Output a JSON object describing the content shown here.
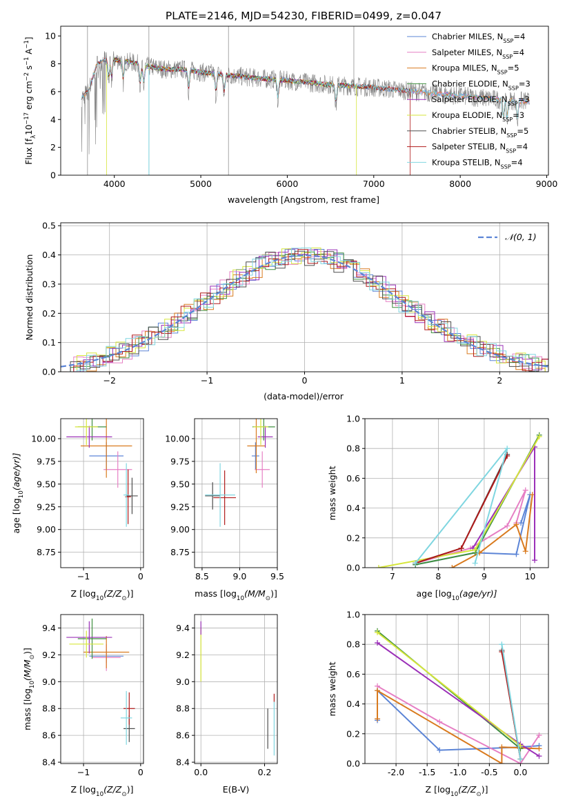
{
  "title": "PLATE=2146, MJD=54230, FIBERID=0499, z=0.047",
  "colors": {
    "Chabrier MILES": "#5b84d6",
    "Salpeter MILES": "#e67fc4",
    "Kroupa MILES": "#d97a1e",
    "Chabrier ELODIE": "#3f8f3f",
    "Salpeter ELODIE": "#9b30b8",
    "Kroupa ELODIE": "#d6e63a",
    "Chabrier STELIB": "#4d4d4d",
    "Salpeter STELIB": "#b01a1a",
    "Kroupa STELIB": "#7fd6e0",
    "data": "#808080",
    "gauss": "#5b84d6"
  },
  "chart_data": [
    {
      "id": "spectrum",
      "type": "line",
      "title": "PLATE=2146, MJD=54230, FIBERID=0499, z=0.047",
      "xlabel": "wavelength [Angstrom, rest frame]",
      "ylabel": "Flux [f",
      "ylabel_sub": "λ",
      "ylabel_rest": "10",
      "ylabel_exp": "−17",
      "ylabel_units": " erg cm",
      "ylabel_units_exp1": "−2",
      "ylabel_units2": " s",
      "ylabel_units_exp2": "−1",
      "ylabel_units3": " A",
      "ylabel_units_exp3": "−1",
      "ylabel_close": "]",
      "xlim": [
        3380,
        9020
      ],
      "ylim": [
        0,
        10.7
      ],
      "xticks": [
        4000,
        5000,
        6000,
        7000,
        8000,
        9000
      ],
      "yticks": [
        0,
        2,
        4,
        6,
        8,
        10
      ],
      "legend_position": "top-right",
      "legend": [
        {
          "name": "Chabrier MILES, N",
          "sub": "SSP",
          "val": "=4"
        },
        {
          "name": "Salpeter MILES, N",
          "sub": "SSP",
          "val": "=4"
        },
        {
          "name": "Kroupa MILES, N",
          "sub": "SSP",
          "val": "=5"
        },
        {
          "name": "Chabrier ELODIE, N",
          "sub": "SSP",
          "val": "=3"
        },
        {
          "name": "Salpeter ELODIE, N",
          "sub": "SSP",
          "val": "=3"
        },
        {
          "name": "Kroupa ELODIE, N",
          "sub": "SSP",
          "val": "=3"
        },
        {
          "name": "Chabrier STELIB, N",
          "sub": "SSP",
          "val": "=5"
        },
        {
          "name": "Salpeter STELIB, N",
          "sub": "SSP",
          "val": "=4"
        },
        {
          "name": "Kroupa STELIB, N",
          "sub": "SSP",
          "val": "=4"
        }
      ],
      "continuum": [
        [
          3620,
          5.6
        ],
        [
          3700,
          6.0
        ],
        [
          3800,
          8.0
        ],
        [
          3900,
          8.3
        ],
        [
          4000,
          8.3
        ],
        [
          4200,
          8.1
        ],
        [
          4400,
          7.8
        ],
        [
          4600,
          7.6
        ],
        [
          4800,
          7.6
        ],
        [
          5000,
          7.4
        ],
        [
          5300,
          7.2
        ],
        [
          5600,
          7.0
        ],
        [
          6000,
          6.8
        ],
        [
          6500,
          6.5
        ],
        [
          7000,
          6.3
        ],
        [
          7500,
          6.0
        ],
        [
          8000,
          5.7
        ],
        [
          8500,
          5.4
        ],
        [
          8800,
          5.3
        ]
      ],
      "absorption_lines": [
        3934,
        3968,
        4102,
        4300,
        4340,
        4861,
        5175,
        5270,
        5892,
        6563,
        8498,
        8542,
        8662
      ]
    },
    {
      "id": "residuals",
      "type": "line",
      "xlabel": "(data-model)/error",
      "ylabel": "Normed distribution",
      "xlim": [
        -2.5,
        2.5
      ],
      "ylim": [
        0,
        0.51
      ],
      "xticks": [
        -2,
        -1,
        0,
        1,
        2
      ],
      "yticks": [
        0.0,
        0.1,
        0.2,
        0.3,
        0.4,
        0.5
      ],
      "gauss_label": "𝒩(0, 1)",
      "grid": true,
      "legend_position": "top-right",
      "bin_width": 0.1
    },
    {
      "id": "age-vs-Z",
      "type": "scatter",
      "xlabel": "Z [log",
      "xlabel_sub": "10",
      "xlabel_rest": "(Z/Z",
      "xlabel_sun_sub": "⊙",
      "xlabel_close": ")]",
      "ylabel": "age  [log",
      "ylabel_sub": "10",
      "ylabel_rest": "(age/yr)]",
      "xlim": [
        -1.4,
        0.05
      ],
      "ylim": [
        8.58,
        10.22
      ],
      "xticks": [
        -1,
        0
      ],
      "yticks": [
        8.75,
        9.0,
        9.25,
        9.5,
        9.75,
        10.0
      ],
      "grid": true,
      "points": [
        {
          "model": "Chabrier MILES",
          "x": -0.6,
          "xerr": 0.3,
          "y": 9.81,
          "yerr": 0.15
        },
        {
          "model": "Salpeter MILES",
          "x": -0.4,
          "xerr": 0.25,
          "y": 9.66,
          "yerr": 0.2
        },
        {
          "model": "Kroupa MILES",
          "x": -0.6,
          "xerr": 0.45,
          "y": 9.92,
          "yerr": 0.35
        },
        {
          "model": "Chabrier ELODIE",
          "x": -0.85,
          "xerr": 0.25,
          "y": 10.13,
          "yerr": 0.15
        },
        {
          "model": "Salpeter ELODIE",
          "x": -0.9,
          "xerr": 0.4,
          "y": 10.02,
          "yerr": 0.12
        },
        {
          "model": "Kroupa ELODIE",
          "x": -0.95,
          "xerr": 0.2,
          "y": 10.13,
          "yerr": 0.2
        },
        {
          "model": "Chabrier STELIB",
          "x": -0.15,
          "xerr": 0.1,
          "y": 9.37,
          "yerr": 0.2
        },
        {
          "model": "Salpeter STELIB",
          "x": -0.22,
          "xerr": 0.05,
          "y": 9.36,
          "yerr": 0.3
        },
        {
          "model": "Kroupa STELIB",
          "x": -0.25,
          "xerr": 0.05,
          "y": 9.38,
          "yerr": 0.35
        }
      ]
    },
    {
      "id": "age-vs-mass",
      "type": "scatter",
      "xlabel": "mass [log",
      "xlabel_sub": "10",
      "xlabel_rest": "(M/M",
      "xlabel_sun_sub": "⊙",
      "xlabel_close": ")]",
      "ylabel": "",
      "xlim": [
        8.4,
        9.5
      ],
      "ylim": [
        8.58,
        10.22
      ],
      "xticks": [
        8.5,
        9.0,
        9.5
      ],
      "yticks": [
        8.75,
        9.0,
        9.25,
        9.5,
        9.75,
        10.0
      ],
      "grid": true,
      "points": [
        {
          "model": "Chabrier MILES",
          "x": 9.21,
          "xerr": 0.05,
          "y": 9.81,
          "yerr": 0.15
        },
        {
          "model": "Salpeter MILES",
          "x": 9.3,
          "xerr": 0.1,
          "y": 9.66,
          "yerr": 0.2
        },
        {
          "model": "Kroupa MILES",
          "x": 9.22,
          "xerr": 0.12,
          "y": 9.92,
          "yerr": 0.3
        },
        {
          "model": "Chabrier ELODIE",
          "x": 9.32,
          "xerr": 0.15,
          "y": 10.13,
          "yerr": 0.15
        },
        {
          "model": "Salpeter ELODIE",
          "x": 9.34,
          "xerr": 0.1,
          "y": 10.02,
          "yerr": 0.12
        },
        {
          "model": "Kroupa ELODIE",
          "x": 9.28,
          "xerr": 0.1,
          "y": 10.13,
          "yerr": 0.2
        },
        {
          "model": "Chabrier STELIB",
          "x": 8.64,
          "xerr": 0.1,
          "y": 9.37,
          "yerr": 0.15
        },
        {
          "model": "Salpeter STELIB",
          "x": 8.8,
          "xerr": 0.15,
          "y": 9.35,
          "yerr": 0.3
        },
        {
          "model": "Kroupa STELIB",
          "x": 8.74,
          "xerr": 0.2,
          "y": 9.38,
          "yerr": 0.35
        }
      ]
    },
    {
      "id": "mass-weight-vs-age",
      "type": "line",
      "xlabel": "age  [log",
      "xlabel_sub": "10",
      "xlabel_rest": "(age/yr)]",
      "ylabel": "mass weight",
      "xlim": [
        6.4,
        10.4
      ],
      "ylim": [
        0,
        1.0
      ],
      "xticks": [
        7,
        8,
        9,
        10
      ],
      "yticks": [
        0.0,
        0.2,
        0.4,
        0.6,
        0.8,
        1.0
      ],
      "grid": true,
      "series": [
        {
          "model": "Chabrier MILES",
          "x": [
            7.5,
            8.8,
            9.7,
            10.0,
            9.8
          ],
          "y": [
            0.02,
            0.1,
            0.09,
            0.49,
            0.3
          ]
        },
        {
          "model": "Salpeter MILES",
          "x": [
            7.5,
            8.7,
            9.5,
            9.9,
            9.7
          ],
          "y": [
            0.03,
            0.13,
            0.28,
            0.52,
            0.3
          ]
        },
        {
          "model": "Kroupa MILES",
          "x": [
            8.3,
            8.9,
            9.7,
            9.9,
            10.05
          ],
          "y": [
            0.0,
            0.1,
            0.29,
            0.11,
            0.49
          ]
        },
        {
          "model": "Chabrier ELODIE",
          "x": [
            7.5,
            8.8,
            10.2
          ],
          "y": [
            0.02,
            0.1,
            0.89
          ]
        },
        {
          "model": "Salpeter ELODIE",
          "x": [
            8.75,
            10.1,
            10.1
          ],
          "y": [
            0.13,
            0.81,
            0.05
          ]
        },
        {
          "model": "Kroupa ELODIE",
          "x": [
            6.7,
            8.8,
            10.2
          ],
          "y": [
            0.0,
            0.12,
            0.88
          ]
        },
        {
          "model": "Chabrier STELIB",
          "x": [
            7.5,
            8.5,
            9.5
          ],
          "y": [
            0.03,
            0.13,
            0.76
          ]
        },
        {
          "model": "Salpeter STELIB",
          "x": [
            7.5,
            8.5,
            9.5
          ],
          "y": [
            0.03,
            0.13,
            0.75
          ]
        },
        {
          "model": "Kroupa STELIB",
          "x": [
            8.8,
            9.5,
            7.5
          ],
          "y": [
            0.03,
            0.8,
            0.03
          ]
        }
      ]
    },
    {
      "id": "mass-vs-Z",
      "type": "scatter",
      "xlabel": "Z [log",
      "xlabel_sub": "10",
      "xlabel_rest": "(Z/Z",
      "xlabel_sun_sub": "⊙",
      "xlabel_close": ")]",
      "ylabel": "mass [log",
      "ylabel_sub": "10",
      "ylabel_rest": "(M/M",
      "ylabel_sun_sub": "⊙",
      "ylabel_close": ")]",
      "xlim": [
        -1.4,
        0.05
      ],
      "ylim": [
        8.39,
        9.5
      ],
      "xticks": [
        -1,
        0
      ],
      "yticks": [
        8.4,
        8.6,
        8.8,
        9.0,
        9.2,
        9.4
      ],
      "grid": true,
      "points": [
        {
          "model": "Chabrier MILES",
          "x": -0.6,
          "xerr": 0.3,
          "y": 9.19,
          "yerr": 0.05
        },
        {
          "model": "Salpeter MILES",
          "x": -0.6,
          "xerr": 0.25,
          "y": 9.18,
          "yerr": 0.1
        },
        {
          "model": "Kroupa MILES",
          "x": -0.6,
          "xerr": 0.4,
          "y": 9.22,
          "yerr": 0.12
        },
        {
          "model": "Chabrier ELODIE",
          "x": -0.85,
          "xerr": 0.25,
          "y": 9.32,
          "yerr": 0.15
        },
        {
          "model": "Salpeter ELODIE",
          "x": -0.9,
          "xerr": 0.4,
          "y": 9.33,
          "yerr": 0.12
        },
        {
          "model": "Kroupa ELODIE",
          "x": -0.95,
          "xerr": 0.3,
          "y": 9.28,
          "yerr": 0.1
        },
        {
          "model": "Chabrier STELIB",
          "x": -0.2,
          "xerr": 0.1,
          "y": 8.65,
          "yerr": 0.1
        },
        {
          "model": "Salpeter STELIB",
          "x": -0.2,
          "xerr": 0.1,
          "y": 8.8,
          "yerr": 0.12
        },
        {
          "model": "Kroupa STELIB",
          "x": -0.25,
          "xerr": 0.1,
          "y": 8.73,
          "yerr": 0.2
        }
      ]
    },
    {
      "id": "mass-vs-EBV",
      "type": "scatter",
      "xlabel": "E(B-V)",
      "xlim": [
        -0.02,
        0.24
      ],
      "ylim": [
        8.39,
        9.5
      ],
      "xticks": [
        0.0,
        0.2
      ],
      "yticks": [
        8.4,
        8.6,
        8.8,
        9.0,
        9.2,
        9.4
      ],
      "grid": true,
      "points": [
        {
          "model": "Kroupa ELODIE",
          "x": 0.0,
          "xerr": 0.0,
          "y": 9.2,
          "yerr": 0.2
        },
        {
          "model": "Salpeter ELODIE",
          "x": 0.0,
          "xerr": 0.0,
          "y": 9.4,
          "yerr": 0.05
        },
        {
          "model": "Chabrier STELIB",
          "x": 0.21,
          "xerr": 0.0,
          "y": 8.65,
          "yerr": 0.15
        },
        {
          "model": "Kroupa STELIB",
          "x": 0.23,
          "xerr": 0.0,
          "y": 8.65,
          "yerr": 0.2
        },
        {
          "model": "Salpeter STELIB",
          "x": 0.23,
          "xerr": 0.0,
          "y": 8.88,
          "yerr": 0.03
        }
      ]
    },
    {
      "id": "mass-weight-vs-Z",
      "type": "line",
      "xlabel": "Z [log",
      "xlabel_sub": "10",
      "xlabel_rest": "(Z/Z",
      "xlabel_sun_sub": "⊙",
      "xlabel_close": ")]",
      "ylabel": "mass weight",
      "xlim": [
        -2.5,
        0.45
      ],
      "ylim": [
        0,
        1.0
      ],
      "xticks": [
        -2.0,
        -1.5,
        -1.0,
        -0.5,
        0.0
      ],
      "yticks": [
        0.0,
        0.2,
        0.4,
        0.6,
        0.8,
        1.0
      ],
      "grid": true,
      "series": [
        {
          "model": "Chabrier MILES",
          "x": [
            -2.3,
            -2.3,
            -1.3,
            0.0,
            0.3
          ],
          "y": [
            0.29,
            0.49,
            0.09,
            0.11,
            0.12
          ]
        },
        {
          "model": "Salpeter MILES",
          "x": [
            -2.3,
            -1.3,
            0.0,
            0.3
          ],
          "y": [
            0.52,
            0.28,
            0.0,
            0.19
          ]
        },
        {
          "model": "Kroupa MILES",
          "x": [
            -2.3,
            -2.3,
            -0.3,
            -0.3,
            0.3
          ],
          "y": [
            0.3,
            0.49,
            0.0,
            0.11,
            0.1
          ]
        },
        {
          "model": "Chabrier ELODIE",
          "x": [
            -2.3,
            0.0
          ],
          "y": [
            0.89,
            0.1
          ]
        },
        {
          "model": "Salpeter ELODIE",
          "x": [
            -2.3,
            0.0,
            0.3
          ],
          "y": [
            0.81,
            0.13,
            0.05
          ]
        },
        {
          "model": "Kroupa ELODIE",
          "x": [
            -2.3,
            0.0
          ],
          "y": [
            0.88,
            0.12
          ]
        },
        {
          "model": "Chabrier STELIB",
          "x": [
            -0.3,
            0.0
          ],
          "y": [
            0.76,
            0.03
          ]
        },
        {
          "model": "Salpeter STELIB",
          "x": [
            -0.3,
            0.0
          ],
          "y": [
            0.75,
            0.03
          ]
        },
        {
          "model": "Kroupa STELIB",
          "x": [
            -0.3,
            0.0
          ],
          "y": [
            0.8,
            0.03
          ]
        }
      ]
    }
  ]
}
